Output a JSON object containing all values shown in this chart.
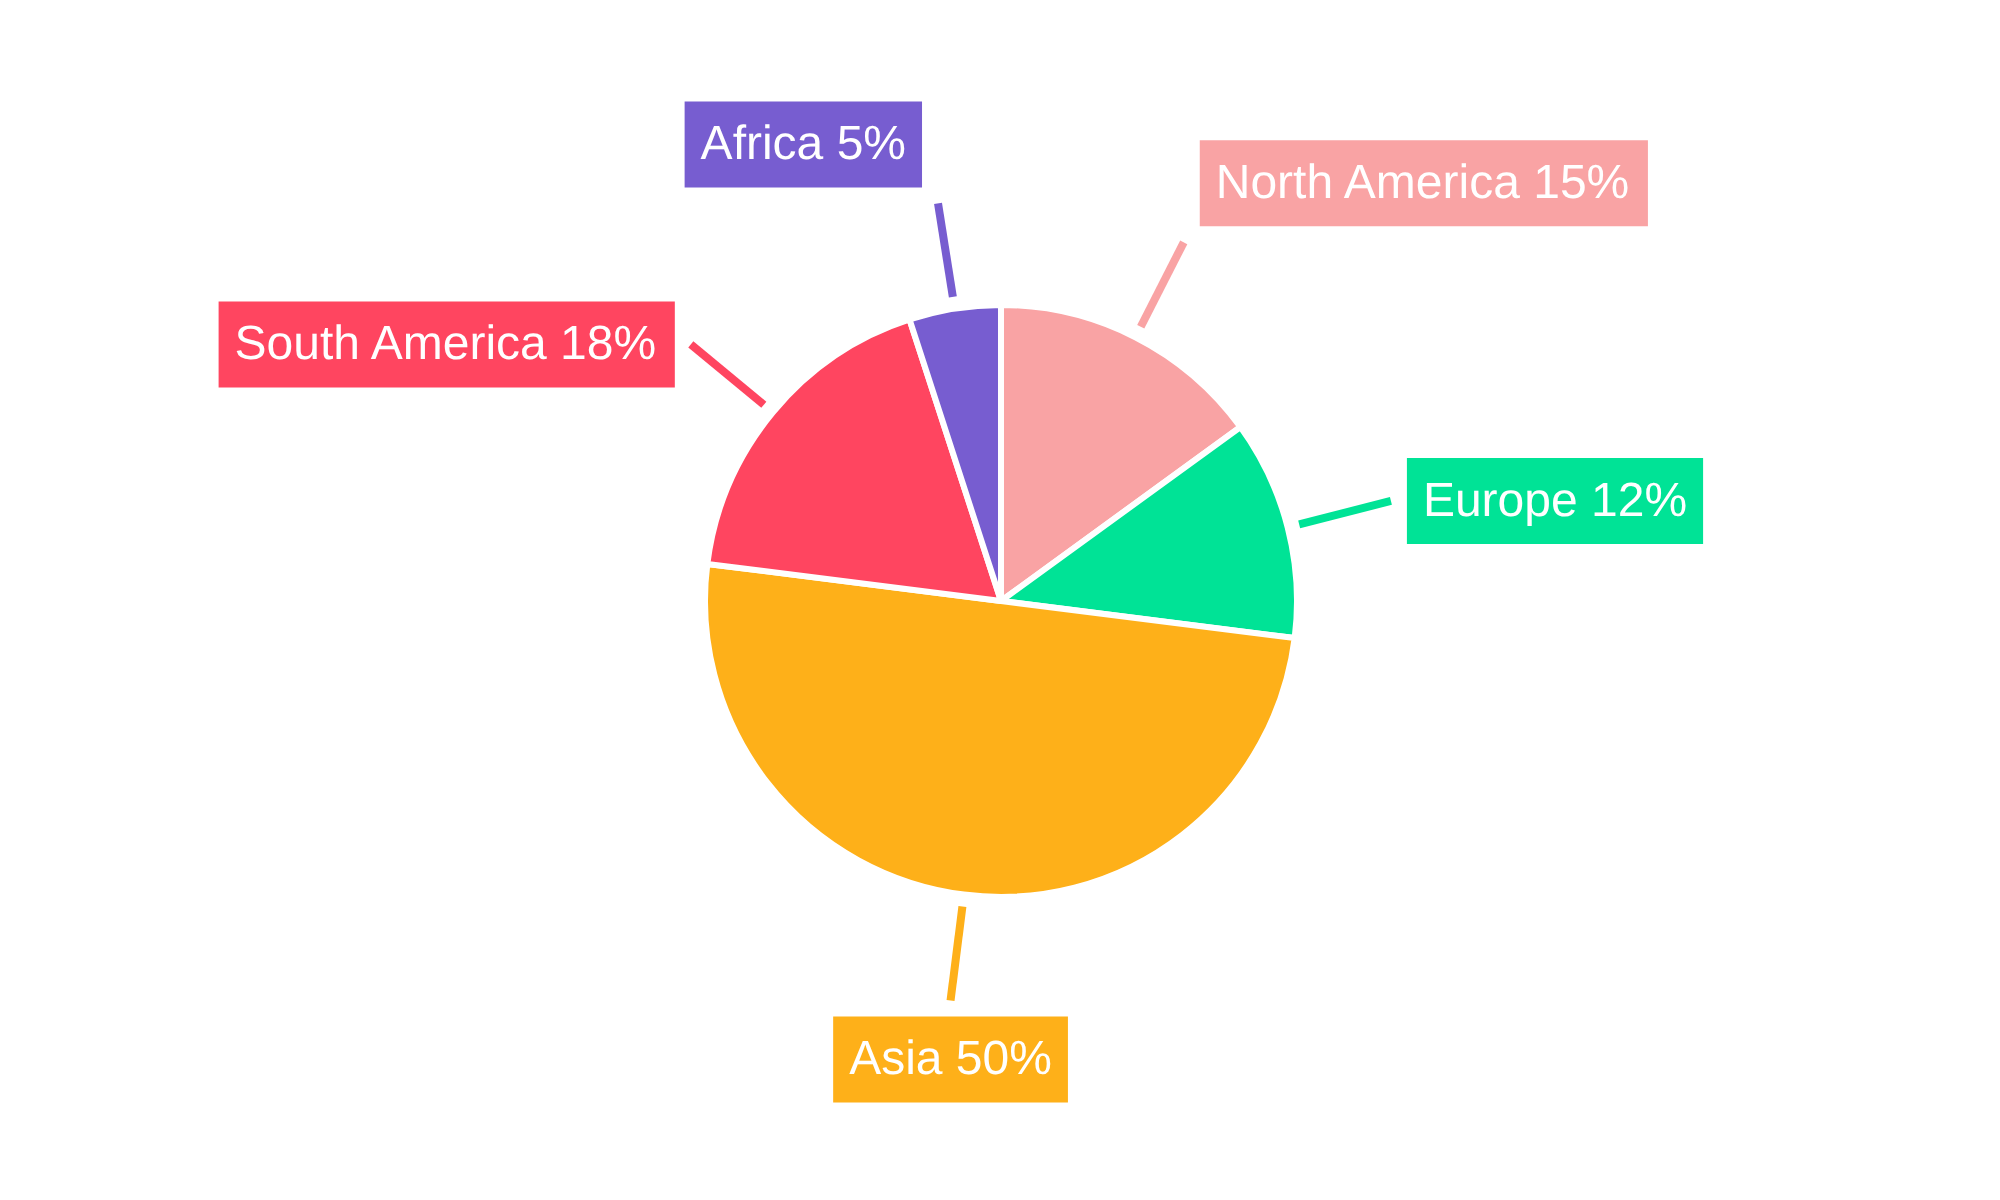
{
  "chart_data": {
    "type": "pie",
    "categories": [
      "North America",
      "Europe",
      "Asia",
      "South America",
      "Africa"
    ],
    "values": [
      15,
      12,
      50,
      18,
      5
    ],
    "value_labels": [
      "15%",
      "12%",
      "50%",
      "18%",
      "5%"
    ],
    "colors": [
      "#f9a3a4",
      "#00e396",
      "#feb019",
      "#ff4560",
      "#775dd0"
    ]
  }
}
